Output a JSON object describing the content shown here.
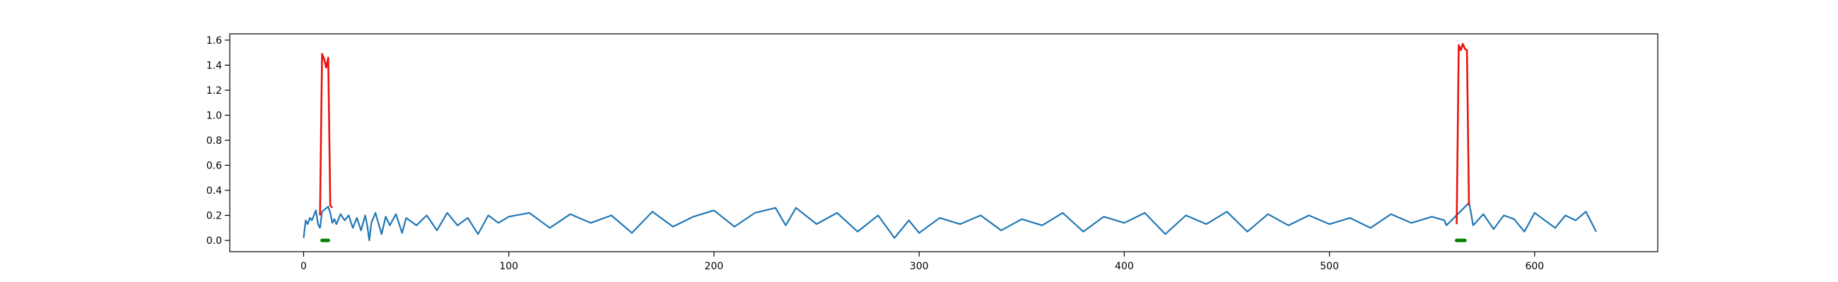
{
  "chart_data": {
    "type": "line",
    "title": "",
    "xlabel": "",
    "ylabel": "",
    "xlim": [
      -36,
      660
    ],
    "ylim": [
      -0.09,
      1.65
    ],
    "grid": false,
    "legend": "none",
    "x_ticks": [
      0,
      100,
      200,
      300,
      400,
      500,
      600
    ],
    "x_tick_labels": [
      "0",
      "100",
      "200",
      "300",
      "400",
      "500",
      "600"
    ],
    "y_ticks": [
      0.0,
      0.2,
      0.4,
      0.6,
      0.8,
      1.0,
      1.2,
      1.4,
      1.6
    ],
    "y_tick_labels": [
      "0.0",
      "0.2",
      "0.4",
      "0.6",
      "0.8",
      "1.0",
      "1.2",
      "1.4",
      "1.6"
    ],
    "series": [
      {
        "role": "signal",
        "color": "#1f77b4",
        "x": [
          0,
          1,
          2,
          3,
          4,
          5,
          6,
          7,
          8,
          9,
          12,
          13,
          14,
          15,
          16,
          18,
          20,
          22,
          24,
          26,
          28,
          30,
          31,
          32,
          33,
          35,
          38,
          40,
          42,
          45,
          48,
          50,
          55,
          60,
          65,
          70,
          75,
          80,
          85,
          90,
          95,
          100,
          110,
          120,
          130,
          140,
          150,
          160,
          170,
          180,
          190,
          200,
          210,
          220,
          230,
          235,
          240,
          250,
          260,
          270,
          280,
          288,
          295,
          300,
          310,
          320,
          330,
          340,
          350,
          360,
          370,
          380,
          390,
          400,
          410,
          420,
          430,
          440,
          450,
          460,
          470,
          480,
          490,
          500,
          510,
          520,
          530,
          540,
          550,
          556,
          557,
          568,
          569,
          570,
          575,
          580,
          585,
          590,
          595,
          600,
          605,
          610,
          615,
          620,
          625,
          630
        ],
        "y": [
          0.02,
          0.16,
          0.13,
          0.18,
          0.16,
          0.2,
          0.24,
          0.13,
          0.1,
          0.23,
          0.27,
          0.22,
          0.14,
          0.17,
          0.13,
          0.21,
          0.16,
          0.2,
          0.1,
          0.18,
          0.08,
          0.2,
          0.12,
          0.0,
          0.14,
          0.22,
          0.05,
          0.19,
          0.12,
          0.21,
          0.06,
          0.18,
          0.12,
          0.2,
          0.08,
          0.22,
          0.12,
          0.18,
          0.05,
          0.2,
          0.14,
          0.19,
          0.22,
          0.1,
          0.21,
          0.14,
          0.2,
          0.06,
          0.23,
          0.11,
          0.19,
          0.24,
          0.11,
          0.22,
          0.26,
          0.12,
          0.26,
          0.13,
          0.22,
          0.07,
          0.2,
          0.02,
          0.16,
          0.06,
          0.18,
          0.13,
          0.2,
          0.08,
          0.17,
          0.12,
          0.22,
          0.07,
          0.19,
          0.14,
          0.22,
          0.05,
          0.2,
          0.13,
          0.23,
          0.07,
          0.21,
          0.12,
          0.2,
          0.13,
          0.18,
          0.1,
          0.21,
          0.14,
          0.19,
          0.16,
          0.12,
          0.3,
          0.22,
          0.12,
          0.21,
          0.09,
          0.2,
          0.17,
          0.07,
          0.22,
          0.16,
          0.1,
          0.2,
          0.16,
          0.23,
          0.07
        ]
      },
      {
        "role": "anomaly",
        "color": "#e8130f",
        "x": [
          8,
          9,
          10,
          11,
          12,
          13,
          14
        ],
        "y": [
          0.2,
          1.49,
          1.45,
          1.38,
          1.46,
          0.28,
          0.26
        ]
      },
      {
        "role": "anomaly",
        "color": "#e8130f",
        "x": [
          562,
          563,
          564,
          565,
          566,
          567,
          568
        ],
        "y": [
          0.13,
          1.56,
          1.52,
          1.57,
          1.53,
          1.52,
          0.28
        ]
      }
    ],
    "markers": {
      "color": "#008000",
      "y": 0.0,
      "ranges": [
        [
          9,
          12
        ],
        [
          562,
          566
        ]
      ]
    }
  }
}
